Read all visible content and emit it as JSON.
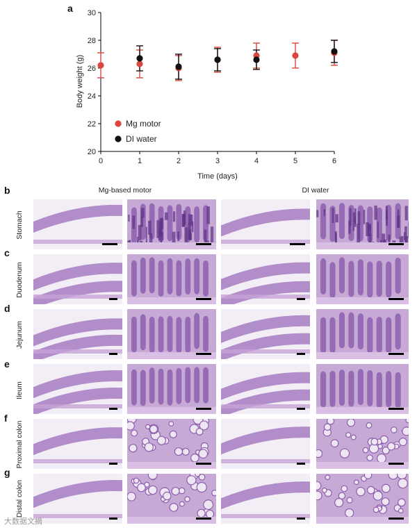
{
  "figure": {
    "panels": {
      "a": "a",
      "b": "b",
      "c": "c",
      "d": "d",
      "e": "e",
      "f": "f",
      "g": "g"
    },
    "column_headers": [
      "Mg-based motor",
      "DI water"
    ],
    "row_labels": [
      "Stomach",
      "Duodenum",
      "Jejunum",
      "Ileum",
      "Proximal colon",
      "Distal colon"
    ],
    "watermark": "大数据文摘"
  },
  "chart_data": {
    "type": "scatter",
    "title": "",
    "xlabel": "Time (days)",
    "ylabel": "Body weight (g)",
    "xlim": [
      0,
      6
    ],
    "ylim": [
      20,
      30
    ],
    "x_ticks": [
      0,
      1,
      2,
      3,
      4,
      5,
      6
    ],
    "y_ticks": [
      20,
      22,
      24,
      26,
      28,
      30
    ],
    "legend_position": "bottom-left",
    "series": [
      {
        "name": "Mg motor",
        "color": "#d9473e",
        "x": [
          0,
          1,
          2,
          3,
          4,
          5,
          6
        ],
        "y": [
          26.2,
          26.3,
          26.0,
          26.6,
          26.9,
          26.9,
          27.1
        ],
        "err": [
          0.9,
          1.0,
          0.9,
          0.9,
          0.9,
          0.9,
          0.9
        ]
      },
      {
        "name": "DI water",
        "color": "#111111",
        "x": [
          1,
          2,
          3,
          4,
          6
        ],
        "y": [
          26.7,
          26.1,
          26.6,
          26.6,
          27.2
        ],
        "err": [
          0.9,
          0.9,
          0.8,
          0.7,
          0.8
        ]
      }
    ]
  }
}
